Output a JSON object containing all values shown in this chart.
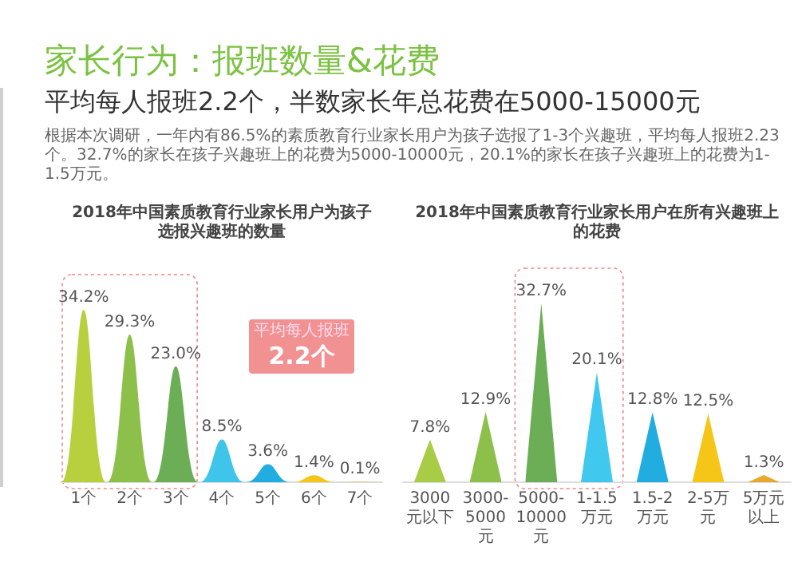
{
  "chart_data": [
    {
      "type": "other",
      "title": "家长行为：报班数量&花费",
      "subtitle": "平均每人报班2.2个，半数家长年总花费在5000-15000元",
      "annotations": [
        "根据本次调研，一年内有86.5%的素质教育行业家长用户为孩子选报了1-3个兴趣班，平均每人报班2.23个。32.7%的家长在孩子兴趣班上的花费为5000-10000元，20.1%的家长在孩子兴趣班上的花费为1-1.5万元。"
      ]
    },
    {
      "type": "bar",
      "title": "2018年中国素质教育行业家长用户为孩子选报兴趣班的数量",
      "categories": [
        "1个",
        "2个",
        "3个",
        "4个",
        "5个",
        "6个",
        "7个"
      ],
      "values": [
        34.2,
        29.3,
        23.0,
        8.5,
        3.6,
        1.4,
        0.1
      ],
      "value_labels": [
        "34.2%",
        "29.3%",
        "23.0%",
        "8.5%",
        "3.6%",
        "1.4%",
        "0.1%"
      ],
      "colors": [
        "#b8d03e",
        "#8dc04a",
        "#6cae56",
        "#3fc5ea",
        "#22ade0",
        "#f5c518",
        "#e8a82c"
      ],
      "annotations": [
        "平均每人报班",
        "2.2个"
      ]
    },
    {
      "type": "bar",
      "title": "2018年中国素质教育行业家长用户在所有兴趣班上的花费",
      "categories": [
        "3000元以下",
        "3000-5000元",
        "5000-10000元",
        "1-1.5万元",
        "1.5-2万元",
        "2-5万元",
        "5万元以上"
      ],
      "values": [
        7.8,
        12.9,
        32.7,
        20.1,
        12.8,
        12.5,
        1.3
      ],
      "value_labels": [
        "7.8%",
        "12.9%",
        "32.7%",
        "20.1%",
        "12.8%",
        "12.5%",
        "1.3%"
      ],
      "colors": [
        "#a9cc46",
        "#8dc04a",
        "#6cae56",
        "#40c8ee",
        "#22ade0",
        "#f5c518",
        "#e8a82c"
      ]
    }
  ]
}
